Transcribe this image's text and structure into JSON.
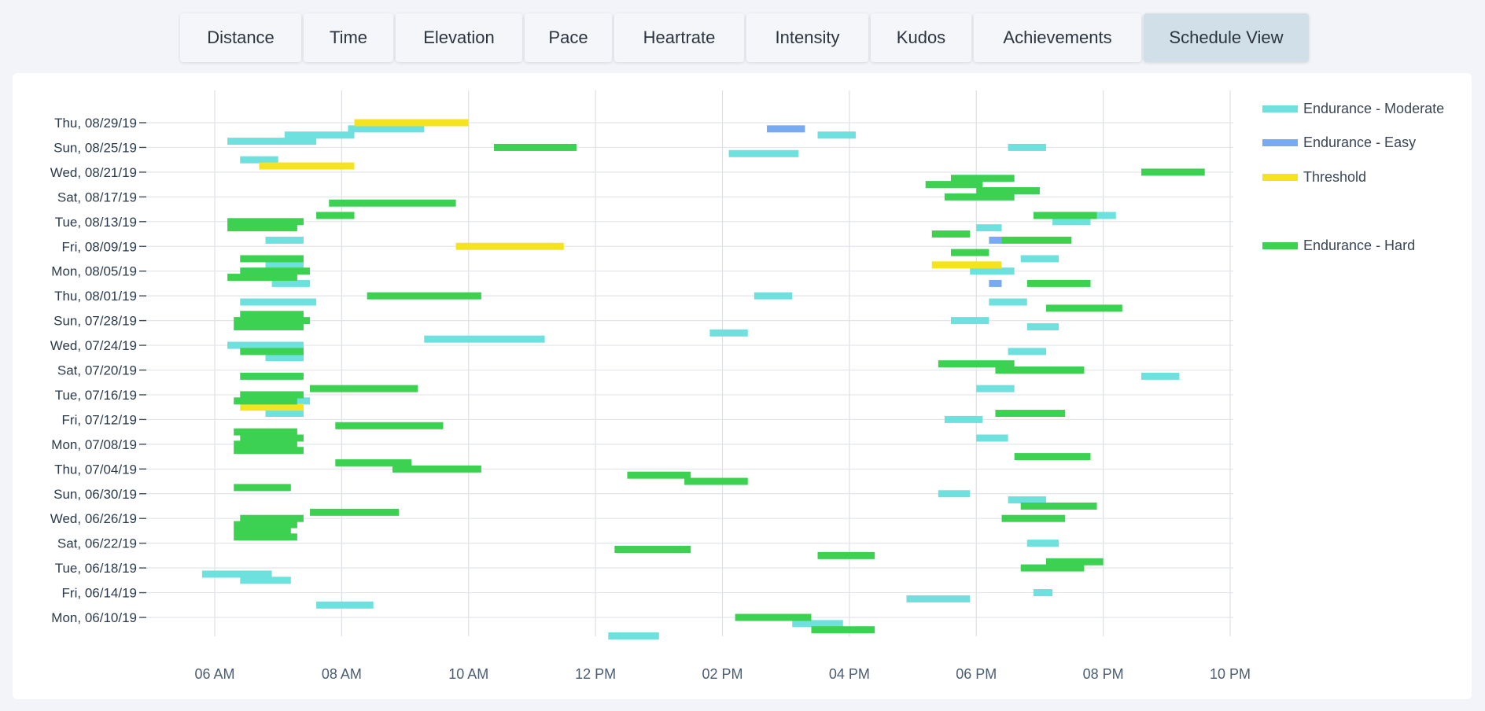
{
  "tabs": [
    {
      "label": "Distance",
      "active": false
    },
    {
      "label": "Time",
      "active": false
    },
    {
      "label": "Elevation",
      "active": false
    },
    {
      "label": "Pace",
      "active": false
    },
    {
      "label": "Heartrate",
      "active": false
    },
    {
      "label": "Intensity",
      "active": false
    },
    {
      "label": "Kudos",
      "active": false
    },
    {
      "label": "Achievements",
      "active": false
    },
    {
      "label": "Schedule View",
      "active": true
    }
  ],
  "chart_data": {
    "type": "bar",
    "orientation": "horizontal-range",
    "title": "",
    "xlabel": "",
    "ylabel": "",
    "grid": true,
    "legend_position": "right",
    "xlim": [
      5.0,
      22.0
    ],
    "x_tick_values": [
      6,
      8,
      10,
      12,
      14,
      16,
      18,
      20,
      22
    ],
    "x_tick_labels": [
      "06 AM",
      "08 AM",
      "10 AM",
      "12 PM",
      "02 PM",
      "04 PM",
      "06 PM",
      "08 PM",
      "10 PM"
    ],
    "ylim": [
      "2019-06-08",
      "2019-09-01"
    ],
    "y_tick_values": [
      "2019-08-29",
      "2019-08-25",
      "2019-08-21",
      "2019-08-17",
      "2019-08-13",
      "2019-08-09",
      "2019-08-05",
      "2019-08-01",
      "2019-07-28",
      "2019-07-24",
      "2019-07-20",
      "2019-07-16",
      "2019-07-12",
      "2019-07-08",
      "2019-07-04",
      "2019-06-30",
      "2019-06-26",
      "2019-06-22",
      "2019-06-18",
      "2019-06-14",
      "2019-06-10"
    ],
    "y_tick_labels": [
      "Thu, 08/29/19",
      "Sun, 08/25/19",
      "Wed, 08/21/19",
      "Sat, 08/17/19",
      "Tue, 08/13/19",
      "Fri, 08/09/19",
      "Mon, 08/05/19",
      "Thu, 08/01/19",
      "Sun, 07/28/19",
      "Wed, 07/24/19",
      "Sat, 07/20/19",
      "Tue, 07/16/19",
      "Fri, 07/12/19",
      "Mon, 07/08/19",
      "Thu, 07/04/19",
      "Sun, 06/30/19",
      "Wed, 06/26/19",
      "Sat, 06/22/19",
      "Tue, 06/18/19",
      "Fri, 06/14/19",
      "Mon, 06/10/19"
    ],
    "series": [
      {
        "name": "Endurance - Moderate",
        "color": "#6ee0dd",
        "activities": [
          {
            "date": "2019-08-28",
            "start": 8.1,
            "end": 9.3
          },
          {
            "date": "2019-08-27",
            "start": 7.1,
            "end": 8.2
          },
          {
            "date": "2019-08-27",
            "start": 15.5,
            "end": 16.1
          },
          {
            "date": "2019-08-26",
            "start": 6.2,
            "end": 7.6
          },
          {
            "date": "2019-08-25",
            "start": 18.5,
            "end": 19.1
          },
          {
            "date": "2019-08-24",
            "start": 14.1,
            "end": 15.2
          },
          {
            "date": "2019-08-23",
            "start": 6.4,
            "end": 7.0
          },
          {
            "date": "2019-08-14",
            "start": 19.0,
            "end": 20.2
          },
          {
            "date": "2019-08-13",
            "start": 19.2,
            "end": 19.8
          },
          {
            "date": "2019-08-12",
            "start": 18.0,
            "end": 18.4
          },
          {
            "date": "2019-08-10",
            "start": 6.8,
            "end": 7.4
          },
          {
            "date": "2019-08-07",
            "start": 18.7,
            "end": 19.3
          },
          {
            "date": "2019-08-06",
            "start": 6.8,
            "end": 7.4
          },
          {
            "date": "2019-08-05",
            "start": 17.9,
            "end": 18.6
          },
          {
            "date": "2019-08-03",
            "start": 6.9,
            "end": 7.5
          },
          {
            "date": "2019-08-01",
            "start": 14.5,
            "end": 15.1
          },
          {
            "date": "2019-07-31",
            "start": 6.4,
            "end": 7.6
          },
          {
            "date": "2019-07-31",
            "start": 18.2,
            "end": 18.8
          },
          {
            "date": "2019-07-28",
            "start": 17.6,
            "end": 18.2
          },
          {
            "date": "2019-07-27",
            "start": 18.8,
            "end": 19.3
          },
          {
            "date": "2019-07-26",
            "start": 13.8,
            "end": 14.4
          },
          {
            "date": "2019-07-25",
            "start": 9.3,
            "end": 11.2
          },
          {
            "date": "2019-07-24",
            "start": 6.2,
            "end": 7.4
          },
          {
            "date": "2019-07-23",
            "start": 18.5,
            "end": 19.1
          },
          {
            "date": "2019-07-22",
            "start": 6.8,
            "end": 7.4
          },
          {
            "date": "2019-07-19",
            "start": 20.6,
            "end": 21.2
          },
          {
            "date": "2019-07-17",
            "start": 18.0,
            "end": 18.6
          },
          {
            "date": "2019-07-15",
            "start": 6.4,
            "end": 7.5
          },
          {
            "date": "2019-07-13",
            "start": 6.8,
            "end": 7.4
          },
          {
            "date": "2019-07-12",
            "start": 17.5,
            "end": 18.1
          },
          {
            "date": "2019-07-09",
            "start": 18.0,
            "end": 18.5
          },
          {
            "date": "2019-06-30",
            "start": 17.4,
            "end": 17.9
          },
          {
            "date": "2019-06-29",
            "start": 18.5,
            "end": 19.1
          },
          {
            "date": "2019-06-22",
            "start": 18.8,
            "end": 19.3
          },
          {
            "date": "2019-06-17",
            "start": 5.8,
            "end": 6.9
          },
          {
            "date": "2019-06-16",
            "start": 6.4,
            "end": 7.2
          },
          {
            "date": "2019-06-14",
            "start": 18.9,
            "end": 19.2
          },
          {
            "date": "2019-06-13",
            "start": 16.9,
            "end": 17.9
          },
          {
            "date": "2019-06-12",
            "start": 7.6,
            "end": 8.5
          },
          {
            "date": "2019-06-09",
            "start": 15.1,
            "end": 15.9
          },
          {
            "date": "2019-06-07",
            "start": 12.2,
            "end": 13.0
          }
        ]
      },
      {
        "name": "Endurance - Easy",
        "color": "#78aaf2",
        "activities": [
          {
            "date": "2019-08-28",
            "start": 14.7,
            "end": 15.3
          },
          {
            "date": "2019-08-10",
            "start": 18.2,
            "end": 18.4
          },
          {
            "date": "2019-08-03",
            "start": 18.2,
            "end": 18.4
          }
        ]
      },
      {
        "name": "Threshold",
        "color": "#f4e31e",
        "activities": [
          {
            "date": "2019-08-29",
            "start": 8.2,
            "end": 10.0
          },
          {
            "date": "2019-08-22",
            "start": 6.7,
            "end": 8.2
          },
          {
            "date": "2019-08-09",
            "start": 9.8,
            "end": 11.5
          },
          {
            "date": "2019-08-06",
            "start": 17.3,
            "end": 18.4
          },
          {
            "date": "2019-07-14",
            "start": 6.4,
            "end": 7.4
          }
        ]
      },
      {
        "name": "Endurance - Hard",
        "color": "#3dd152",
        "activities": [
          {
            "date": "2019-08-25",
            "start": 10.4,
            "end": 11.7
          },
          {
            "date": "2019-08-21",
            "start": 20.6,
            "end": 21.6
          },
          {
            "date": "2019-08-20",
            "start": 17.6,
            "end": 18.6
          },
          {
            "date": "2019-08-19",
            "start": 17.2,
            "end": 18.1
          },
          {
            "date": "2019-08-18",
            "start": 18.0,
            "end": 19.0
          },
          {
            "date": "2019-08-17",
            "start": 17.5,
            "end": 18.6
          },
          {
            "date": "2019-08-16",
            "start": 7.8,
            "end": 9.8
          },
          {
            "date": "2019-08-14",
            "start": 7.6,
            "end": 8.2
          },
          {
            "date": "2019-08-14",
            "start": 18.9,
            "end": 19.9
          },
          {
            "date": "2019-08-13",
            "start": 6.2,
            "end": 7.4
          },
          {
            "date": "2019-08-12",
            "start": 6.2,
            "end": 7.3
          },
          {
            "date": "2019-08-11",
            "start": 17.3,
            "end": 17.9
          },
          {
            "date": "2019-08-10",
            "start": 18.4,
            "end": 19.5
          },
          {
            "date": "2019-08-08",
            "start": 17.6,
            "end": 18.2
          },
          {
            "date": "2019-08-07",
            "start": 6.4,
            "end": 7.4
          },
          {
            "date": "2019-08-05",
            "start": 6.4,
            "end": 7.5
          },
          {
            "date": "2019-08-04",
            "start": 6.2,
            "end": 7.3
          },
          {
            "date": "2019-08-03",
            "start": 18.8,
            "end": 19.8
          },
          {
            "date": "2019-08-01",
            "start": 8.4,
            "end": 10.2
          },
          {
            "date": "2019-07-30",
            "start": 19.1,
            "end": 20.3
          },
          {
            "date": "2019-07-29",
            "start": 6.4,
            "end": 7.4
          },
          {
            "date": "2019-07-28",
            "start": 6.3,
            "end": 7.5
          },
          {
            "date": "2019-07-27",
            "start": 6.3,
            "end": 7.4
          },
          {
            "date": "2019-07-23",
            "start": 6.4,
            "end": 7.4
          },
          {
            "date": "2019-07-21",
            "start": 17.4,
            "end": 18.6
          },
          {
            "date": "2019-07-20",
            "start": 18.3,
            "end": 19.7
          },
          {
            "date": "2019-07-19",
            "start": 6.4,
            "end": 7.4
          },
          {
            "date": "2019-07-17",
            "start": 7.5,
            "end": 9.2
          },
          {
            "date": "2019-07-16",
            "start": 6.4,
            "end": 7.4
          },
          {
            "date": "2019-07-15",
            "start": 6.3,
            "end": 7.3
          },
          {
            "date": "2019-07-13",
            "start": 18.3,
            "end": 19.4
          },
          {
            "date": "2019-07-11",
            "start": 7.9,
            "end": 9.6
          },
          {
            "date": "2019-07-10",
            "start": 6.3,
            "end": 7.3
          },
          {
            "date": "2019-07-09",
            "start": 6.4,
            "end": 7.4
          },
          {
            "date": "2019-07-08",
            "start": 6.3,
            "end": 7.3
          },
          {
            "date": "2019-07-07",
            "start": 6.3,
            "end": 7.4
          },
          {
            "date": "2019-07-06",
            "start": 18.6,
            "end": 19.8
          },
          {
            "date": "2019-07-05",
            "start": 7.9,
            "end": 9.1
          },
          {
            "date": "2019-07-04",
            "start": 8.8,
            "end": 10.2
          },
          {
            "date": "2019-07-03",
            "start": 12.5,
            "end": 13.5
          },
          {
            "date": "2019-07-02",
            "start": 13.4,
            "end": 14.4
          },
          {
            "date": "2019-07-01",
            "start": 6.3,
            "end": 7.2
          },
          {
            "date": "2019-06-28",
            "start": 18.7,
            "end": 19.9
          },
          {
            "date": "2019-06-27",
            "start": 7.5,
            "end": 8.9
          },
          {
            "date": "2019-06-26",
            "start": 18.4,
            "end": 19.4
          },
          {
            "date": "2019-06-26",
            "start": 6.4,
            "end": 7.4
          },
          {
            "date": "2019-06-25",
            "start": 6.3,
            "end": 7.3
          },
          {
            "date": "2019-06-24",
            "start": 6.3,
            "end": 7.2
          },
          {
            "date": "2019-06-23",
            "start": 6.3,
            "end": 7.3
          },
          {
            "date": "2019-06-21",
            "start": 12.3,
            "end": 13.5
          },
          {
            "date": "2019-06-20",
            "start": 15.5,
            "end": 16.4
          },
          {
            "date": "2019-06-19",
            "start": 19.1,
            "end": 20.0
          },
          {
            "date": "2019-06-18",
            "start": 18.7,
            "end": 19.7
          },
          {
            "date": "2019-06-10",
            "start": 14.2,
            "end": 15.4
          },
          {
            "date": "2019-06-08",
            "start": 15.4,
            "end": 16.4
          }
        ]
      }
    ]
  }
}
